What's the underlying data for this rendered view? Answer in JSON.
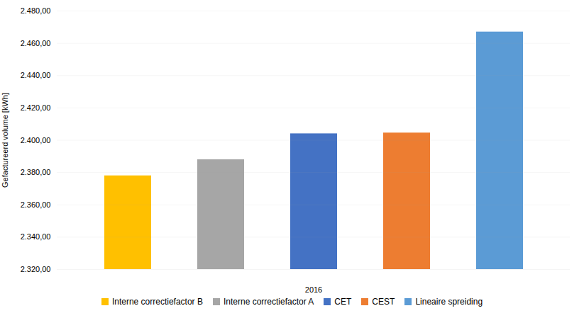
{
  "chart_data": {
    "type": "bar",
    "categories": [
      "Interne correctiefactor B",
      "Interne correctiefactor A",
      "CET",
      "CEST",
      "Lineaire spreiding"
    ],
    "values": [
      2378,
      2388,
      2404,
      2404.5,
      2467
    ],
    "colors": [
      "#FFC000",
      "#A6A6A6",
      "#4472C4",
      "#ED7D31",
      "#5B9BD5"
    ],
    "xlabel": "2016",
    "ylabel": "Gefactureerd volume [kWh]",
    "ylim": [
      2320,
      2480
    ],
    "yticks": [
      {
        "value": 2320,
        "label": "2.320,00"
      },
      {
        "value": 2340,
        "label": "2.340,00"
      },
      {
        "value": 2360,
        "label": "2.360,00"
      },
      {
        "value": 2380,
        "label": "2.380,00"
      },
      {
        "value": 2400,
        "label": "2.400,00"
      },
      {
        "value": 2420,
        "label": "2.420,00"
      },
      {
        "value": 2440,
        "label": "2.440,00"
      },
      {
        "value": 2460,
        "label": "2.460,00"
      },
      {
        "value": 2480,
        "label": "2.480,00"
      }
    ],
    "grid": true,
    "legend": "bottom",
    "tick_labels": "y"
  }
}
